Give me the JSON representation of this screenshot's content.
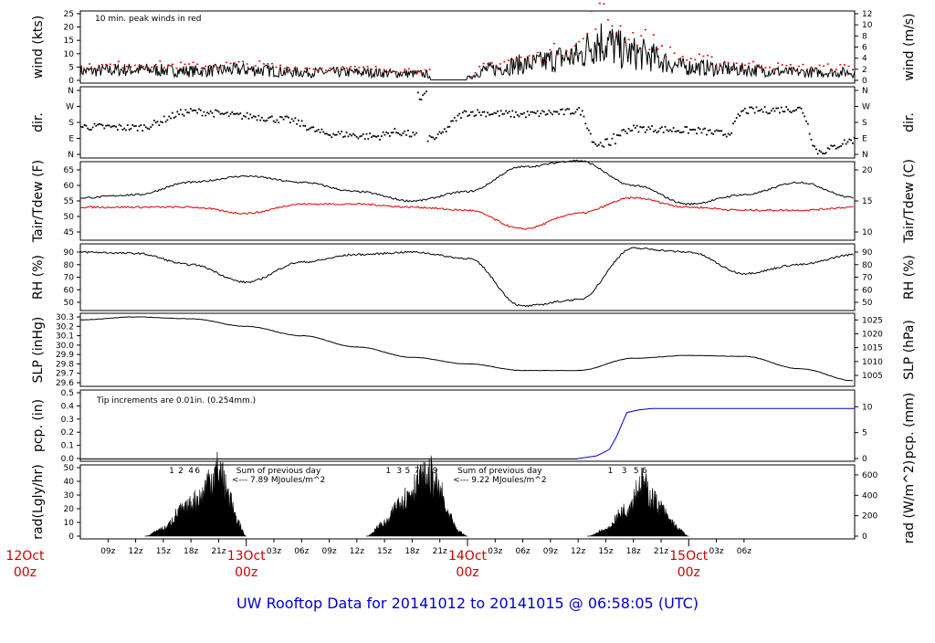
{
  "title": "UW Rooftop Data for 20141012  to  20141015 @ 06:58:05  (UTC)",
  "colors": {
    "black": "#000000",
    "red": "#dd0000",
    "blue": "#0000cc",
    "purple": "#9900cc"
  },
  "x_axis": {
    "hour_labels": [
      "09z",
      "12z",
      "15z",
      "18z",
      "21z",
      "03z",
      "06z",
      "09z",
      "12z",
      "15z",
      "18z",
      "21z",
      "03z",
      "06z",
      "09z",
      "12z",
      "15z",
      "18z",
      "21z",
      "03z",
      "06z"
    ],
    "day_labels": [
      {
        "day": "12Oct",
        "hour": "00z"
      },
      {
        "day": "13Oct",
        "hour": "00z"
      },
      {
        "day": "14Oct",
        "hour": "00z"
      },
      {
        "day": "15Oct",
        "hour": "00z"
      }
    ]
  },
  "panels": {
    "wind": {
      "left_label": "wind (kts)",
      "right_label": "wind (m/s)",
      "note": "10 min. peak winds in red",
      "left_ticks": [
        "0",
        "5",
        "10",
        "15",
        "20",
        "25"
      ],
      "right_ticks": [
        "0",
        "2",
        "4",
        "6",
        "8",
        "10",
        "12"
      ]
    },
    "dir": {
      "left_label": "dir.",
      "right_label": "dir.",
      "left_ticks": [
        "N",
        "E",
        "S",
        "W",
        "N"
      ],
      "right_ticks": [
        "N",
        "E",
        "S",
        "W",
        "N"
      ]
    },
    "temp": {
      "left_label": "Tair/Tdew (F)",
      "right_label": "Tair/Tdew (C)",
      "left_ticks": [
        "45",
        "50",
        "55",
        "60",
        "65"
      ],
      "right_ticks": [
        "10",
        "15",
        "20"
      ]
    },
    "rh": {
      "left_label": "RH (%)",
      "right_label": "RH (%)",
      "left_ticks": [
        "50",
        "60",
        "70",
        "80",
        "90"
      ],
      "right_ticks": [
        "50",
        "60",
        "70",
        "80",
        "90"
      ]
    },
    "slp": {
      "left_label": "SLP (inHg)",
      "right_label": "SLP (hPa)",
      "left_ticks": [
        "29.6",
        "29.7",
        "29.8",
        "29.9",
        "30.0",
        "30.1",
        "30.2",
        "30.3"
      ],
      "right_ticks": [
        "1005",
        "1010",
        "1015",
        "1020",
        "1025"
      ]
    },
    "pcp": {
      "left_label": "pcp. (in)",
      "right_label": "pcp. (mm)",
      "note": "Tip increments are 0.01in. (0.254mm.)",
      "left_ticks": [
        "0.0",
        "0.1",
        "0.2",
        "0.3",
        "0.4",
        "0.5"
      ],
      "right_ticks": [
        "0",
        "5",
        "10"
      ]
    },
    "rad": {
      "left_label": "rad(Lgly/hr)",
      "right_label": "rad (W/m^2)",
      "left_ticks": [
        "0",
        "10",
        "20",
        "30",
        "40",
        "50"
      ],
      "right_ticks": [
        "0",
        "200",
        "400",
        "600"
      ],
      "sum_label": "Sum of previous day",
      "sums": [
        "<--- 7.89 MJoules/m^2",
        "<--- 9.22 MJoules/m^2"
      ],
      "marker_groups": [
        [
          "1",
          "2",
          "4",
          "6"
        ],
        [
          "1",
          "3",
          "5",
          "7",
          "9"
        ],
        [
          "1",
          "3",
          "5",
          "6"
        ]
      ]
    }
  },
  "chart_data": [
    {
      "type": "line",
      "title": "",
      "ylabel": "wind (kts)",
      "ylabel_right": "wind (m/s)",
      "ylim": [
        0,
        25
      ],
      "x_hours_utc_since_12Oct_00z": [
        6,
        12,
        18,
        24,
        30,
        36,
        42,
        48,
        50,
        54,
        60,
        62,
        66,
        72,
        78,
        84,
        90
      ],
      "series": [
        {
          "values": [
            3.5,
            4,
            3.5,
            4,
            3,
            3,
            2.5,
            1,
            4,
            6,
            9,
            15,
            10,
            5,
            4,
            3,
            3
          ]
        },
        {
          "values": [
            5,
            6,
            5.5,
            6,
            4.5,
            4.5,
            4,
            1,
            6,
            8,
            13,
            24,
            16,
            8,
            6,
            5,
            5
          ]
        }
      ],
      "annotations": [
        "10 min. peak winds in red"
      ]
    },
    {
      "type": "scatter",
      "title": "",
      "ylabel": "dir.",
      "ylabel_right": "dir.",
      "x_hours_utc_since_12Oct_00z": [
        6,
        12,
        18,
        24,
        30,
        33,
        40,
        48,
        54,
        60,
        66,
        72,
        78,
        84,
        90
      ],
      "series": [
        {
          "values_compass": [
            "SE",
            "SE",
            "SW",
            "SW",
            "E",
            "E",
            "SE",
            "SW",
            "SW",
            "SE",
            "SE",
            "E",
            "W",
            "N",
            "E"
          ]
        }
      ]
    },
    {
      "type": "line",
      "title": "",
      "ylabel": "Tair/Tdew (F)",
      "ylabel_right": "Tair/Tdew (C)",
      "ylim": [
        43,
        68
      ],
      "x_hours_utc_since_12Oct_00z": [
        6,
        12,
        18,
        24,
        30,
        36,
        42,
        48,
        54,
        60,
        66,
        72,
        78,
        84,
        90
      ],
      "series": [
        {
          "values": [
            56,
            57,
            61,
            63,
            61,
            58,
            55,
            58,
            66,
            68,
            60,
            54,
            57,
            61,
            56
          ]
        },
        {
          "values": [
            53,
            53,
            53,
            51,
            54,
            54,
            53,
            52,
            46,
            51,
            56,
            53,
            52,
            52,
            53
          ]
        }
      ]
    },
    {
      "type": "line",
      "title": "",
      "ylabel": "RH (%)",
      "ylabel_right": "RH (%)",
      "ylim": [
        44,
        94
      ],
      "x_hours_utc_since_12Oct_00z": [
        6,
        12,
        18,
        24,
        30,
        36,
        42,
        48,
        54,
        60,
        66,
        72,
        78,
        84,
        90
      ],
      "series": [
        {
          "values": [
            90,
            89,
            80,
            66,
            82,
            88,
            90,
            85,
            47,
            52,
            93,
            90,
            73,
            80,
            88
          ]
        }
      ]
    },
    {
      "type": "line",
      "title": "",
      "ylabel": "SLP (inHg)",
      "ylabel_right": "SLP (hPa)",
      "ylim": [
        29.6,
        30.35
      ],
      "x_hours_utc_since_12Oct_00z": [
        6,
        12,
        18,
        24,
        30,
        36,
        42,
        48,
        54,
        60,
        66,
        72,
        78,
        84,
        90
      ],
      "series": [
        {
          "values": [
            30.27,
            30.3,
            30.28,
            30.2,
            30.1,
            29.98,
            29.87,
            29.8,
            29.73,
            29.73,
            29.86,
            29.89,
            29.88,
            29.75,
            29.62
          ]
        }
      ]
    },
    {
      "type": "line",
      "title": "",
      "ylabel": "pcp. (in)",
      "ylabel_right": "pcp. (mm)",
      "ylim": [
        0,
        0.5
      ],
      "x_hours_utc_since_12Oct_00z": [
        6,
        60,
        62,
        63,
        64,
        66,
        90
      ],
      "series": [
        {
          "values": [
            0,
            0,
            0.03,
            0.06,
            0.2,
            0.38,
            0.38
          ]
        }
      ],
      "annotations": [
        "Tip increments are 0.01in. (0.254mm.)"
      ]
    },
    {
      "type": "area",
      "title": "",
      "ylabel": "rad(Lgly/hr)",
      "ylabel_right": "rad (W/m^2)",
      "ylim": [
        0,
        55
      ],
      "x_hours_utc_since_12Oct_00z": [
        13,
        15,
        17,
        19,
        20,
        21,
        22,
        23,
        24,
        37,
        39,
        41,
        43,
        44,
        45,
        46,
        47,
        48,
        61,
        63,
        65,
        67,
        68,
        69,
        70,
        71,
        72
      ],
      "series": [
        {
          "values": [
            0,
            6,
            20,
            30,
            45,
            52,
            35,
            12,
            0,
            0,
            10,
            30,
            44,
            48,
            35,
            15,
            4,
            0,
            0,
            5,
            20,
            42,
            30,
            22,
            12,
            5,
            0
          ]
        }
      ],
      "annotations": [
        "Sum of previous day",
        "<--- 7.89 MJoules/m^2",
        "<--- 9.22 MJoules/m^2"
      ]
    }
  ]
}
